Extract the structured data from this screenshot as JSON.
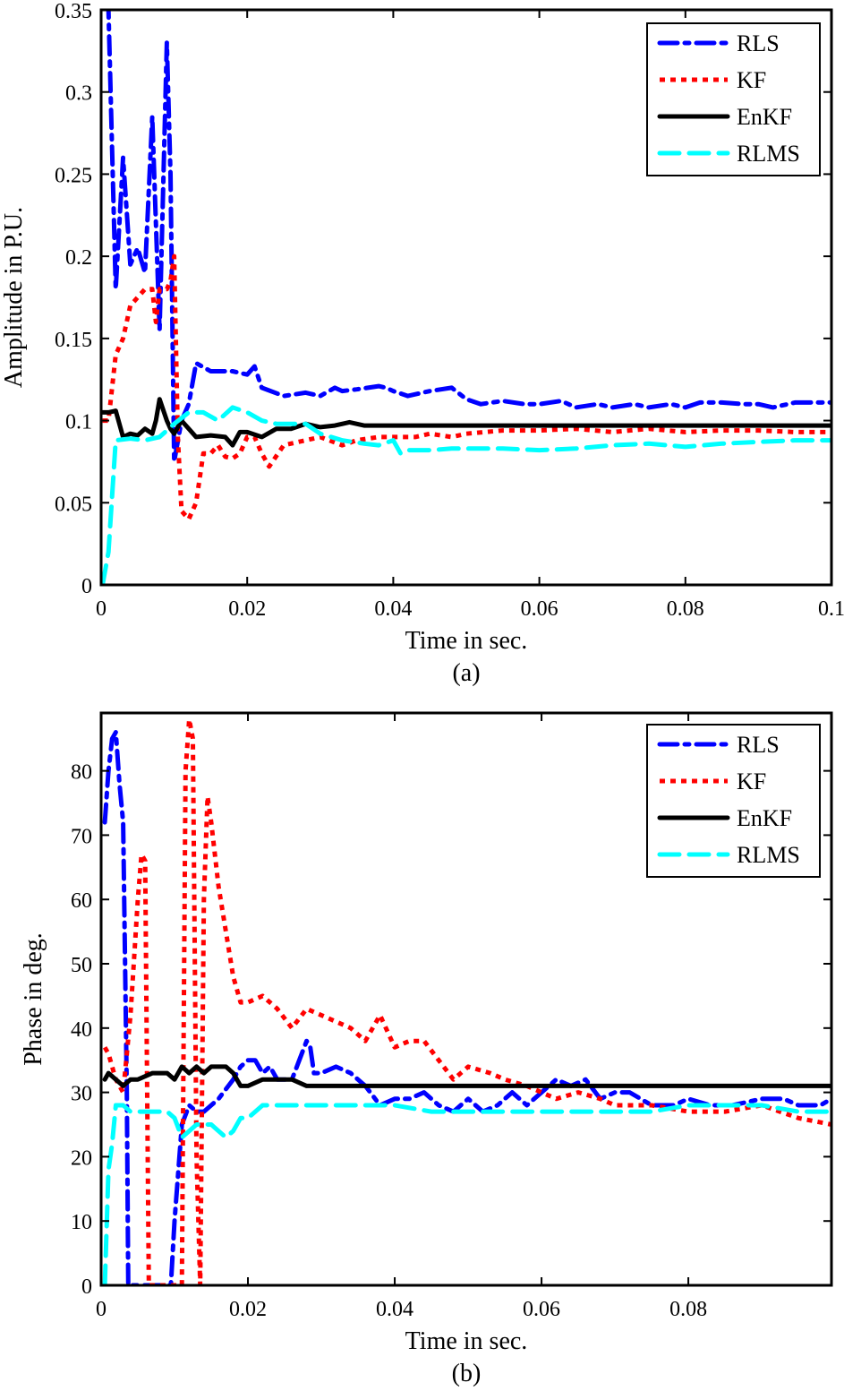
{
  "chart_data": [
    {
      "type": "line",
      "caption": "(a)",
      "xlabel": "Time in sec.",
      "ylabel": "Amplitude in P.U.",
      "xlim": [
        0,
        0.1
      ],
      "ylim": [
        0,
        0.35
      ],
      "xticks": [
        0,
        0.02,
        0.04,
        0.06,
        0.08,
        0.1
      ],
      "xtick_labels": [
        "0",
        "0.02",
        "0.04",
        "0.06",
        "0.08",
        "0.1"
      ],
      "yticks": [
        0,
        0.05,
        0.1,
        0.15,
        0.2,
        0.25,
        0.3,
        0.35
      ],
      "ytick_labels": [
        "0",
        "0.05",
        "0.1",
        "0.15",
        "0.2",
        "0.25",
        "0.3",
        "0.35"
      ],
      "grid": false,
      "legend_position": "top-right",
      "series": [
        {
          "name": "RLS",
          "color": "#0000ff",
          "dash": "dashdot",
          "x": [
            0.0002,
            0.001,
            0.002,
            0.003,
            0.004,
            0.005,
            0.006,
            0.007,
            0.008,
            0.009,
            0.0095,
            0.01,
            0.011,
            0.012,
            0.013,
            0.015,
            0.018,
            0.02,
            0.021,
            0.022,
            0.025,
            0.028,
            0.03,
            0.032,
            0.033,
            0.035,
            0.038,
            0.039,
            0.04,
            0.042,
            0.045,
            0.048,
            0.05,
            0.052,
            0.055,
            0.058,
            0.06,
            0.063,
            0.065,
            0.068,
            0.07,
            0.073,
            0.075,
            0.078,
            0.08,
            0.082,
            0.085,
            0.088,
            0.09,
            0.092,
            0.095,
            0.098,
            0.1
          ],
          "y": [
            0.355,
            0.35,
            0.18,
            0.26,
            0.195,
            0.205,
            0.19,
            0.285,
            0.155,
            0.33,
            0.25,
            0.075,
            0.1,
            0.11,
            0.135,
            0.13,
            0.13,
            0.128,
            0.133,
            0.12,
            0.115,
            0.117,
            0.115,
            0.12,
            0.118,
            0.119,
            0.121,
            0.12,
            0.118,
            0.115,
            0.118,
            0.12,
            0.113,
            0.11,
            0.112,
            0.11,
            0.11,
            0.112,
            0.108,
            0.11,
            0.108,
            0.11,
            0.108,
            0.11,
            0.108,
            0.111,
            0.111,
            0.11,
            0.11,
            0.108,
            0.111,
            0.111,
            0.111
          ]
        },
        {
          "name": "KF",
          "color": "#ff0000",
          "dash": "dotted",
          "x": [
            0.0002,
            0.001,
            0.002,
            0.003,
            0.004,
            0.005,
            0.006,
            0.007,
            0.0075,
            0.008,
            0.009,
            0.0095,
            0.01,
            0.0105,
            0.011,
            0.012,
            0.013,
            0.014,
            0.015,
            0.016,
            0.017,
            0.018,
            0.019,
            0.02,
            0.021,
            0.022,
            0.023,
            0.025,
            0.028,
            0.03,
            0.033,
            0.035,
            0.038,
            0.04,
            0.043,
            0.045,
            0.048,
            0.05,
            0.055,
            0.06,
            0.065,
            0.07,
            0.075,
            0.08,
            0.085,
            0.09,
            0.095,
            0.1
          ],
          "y": [
            0.1,
            0.1,
            0.14,
            0.15,
            0.17,
            0.175,
            0.18,
            0.18,
            0.16,
            0.18,
            0.18,
            0.185,
            0.2,
            0.09,
            0.045,
            0.04,
            0.05,
            0.08,
            0.08,
            0.085,
            0.078,
            0.077,
            0.08,
            0.09,
            0.09,
            0.08,
            0.072,
            0.085,
            0.088,
            0.09,
            0.085,
            0.088,
            0.09,
            0.09,
            0.09,
            0.092,
            0.09,
            0.092,
            0.094,
            0.094,
            0.095,
            0.093,
            0.095,
            0.093,
            0.094,
            0.094,
            0.093,
            0.093
          ]
        },
        {
          "name": "EnKF",
          "color": "#000000",
          "dash": "solid",
          "x": [
            0.0002,
            0.001,
            0.002,
            0.003,
            0.004,
            0.005,
            0.006,
            0.007,
            0.0075,
            0.008,
            0.009,
            0.0095,
            0.01,
            0.011,
            0.012,
            0.013,
            0.015,
            0.017,
            0.018,
            0.019,
            0.02,
            0.022,
            0.024,
            0.026,
            0.028,
            0.03,
            0.032,
            0.034,
            0.036,
            0.038,
            0.04,
            0.05,
            0.06,
            0.07,
            0.08,
            0.09,
            0.1
          ],
          "y": [
            0.105,
            0.105,
            0.106,
            0.09,
            0.092,
            0.091,
            0.095,
            0.092,
            0.1,
            0.113,
            0.1,
            0.095,
            0.092,
            0.1,
            0.095,
            0.09,
            0.091,
            0.09,
            0.085,
            0.093,
            0.093,
            0.09,
            0.095,
            0.095,
            0.098,
            0.096,
            0.097,
            0.099,
            0.097,
            0.097,
            0.097,
            0.097,
            0.097,
            0.097,
            0.097,
            0.097,
            0.097
          ]
        },
        {
          "name": "RLMS",
          "color": "#00ffff",
          "dash": "dashed",
          "x": [
            0.0002,
            0.001,
            0.002,
            0.004,
            0.006,
            0.008,
            0.01,
            0.012,
            0.014,
            0.016,
            0.018,
            0.02,
            0.022,
            0.024,
            0.026,
            0.028,
            0.03,
            0.033,
            0.036,
            0.038,
            0.04,
            0.041,
            0.042,
            0.045,
            0.048,
            0.05,
            0.055,
            0.06,
            0.065,
            0.07,
            0.075,
            0.08,
            0.085,
            0.09,
            0.095,
            0.1
          ],
          "y": [
            0,
            0.02,
            0.088,
            0.089,
            0.088,
            0.09,
            0.098,
            0.105,
            0.105,
            0.1,
            0.108,
            0.105,
            0.1,
            0.098,
            0.098,
            0.098,
            0.092,
            0.088,
            0.086,
            0.085,
            0.088,
            0.08,
            0.082,
            0.082,
            0.083,
            0.083,
            0.083,
            0.082,
            0.083,
            0.085,
            0.086,
            0.084,
            0.086,
            0.087,
            0.088,
            0.088
          ]
        }
      ]
    },
    {
      "type": "line",
      "caption": "(b)",
      "xlabel": "Time in sec.",
      "ylabel": "Phase in deg.",
      "xlim": [
        0,
        0.0995
      ],
      "ylim": [
        0,
        89
      ],
      "xticks": [
        0,
        0.02,
        0.04,
        0.06,
        0.08
      ],
      "xtick_labels": [
        "0",
        "0.02",
        "0.04",
        "0.06",
        "0.08"
      ],
      "yticks": [
        0,
        10,
        20,
        30,
        40,
        50,
        60,
        70,
        80
      ],
      "ytick_labels": [
        "0",
        "10",
        "20",
        "30",
        "40",
        "50",
        "60",
        "70",
        "80"
      ],
      "grid": false,
      "legend_position": "top-right",
      "series": [
        {
          "name": "RLS",
          "color": "#0000ff",
          "dash": "dashdot",
          "x": [
            0.0005,
            0.001,
            0.0015,
            0.002,
            0.0025,
            0.003,
            0.0035,
            0.0037,
            0.0095,
            0.01,
            0.011,
            0.012,
            0.013,
            0.014,
            0.016,
            0.018,
            0.019,
            0.02,
            0.021,
            0.022,
            0.023,
            0.024,
            0.026,
            0.027,
            0.028,
            0.0285,
            0.029,
            0.03,
            0.032,
            0.034,
            0.036,
            0.038,
            0.04,
            0.042,
            0.044,
            0.046,
            0.048,
            0.05,
            0.052,
            0.054,
            0.056,
            0.058,
            0.06,
            0.062,
            0.064,
            0.066,
            0.068,
            0.07,
            0.072,
            0.075,
            0.078,
            0.08,
            0.083,
            0.086,
            0.09,
            0.093,
            0.095,
            0.098,
            0.0995
          ],
          "y": [
            72,
            80,
            85,
            86,
            78,
            72,
            30,
            0,
            0,
            10,
            25,
            28,
            27,
            27,
            29,
            32,
            34,
            35,
            35,
            33,
            34,
            32,
            32,
            35,
            38,
            37,
            33,
            33,
            34,
            33,
            31,
            28,
            29,
            29,
            30,
            28,
            27,
            29,
            27,
            28,
            30,
            28,
            30,
            32,
            31,
            32,
            29,
            30,
            30,
            28,
            28,
            29,
            28,
            28,
            29,
            29,
            28,
            28,
            29
          ]
        },
        {
          "name": "KF",
          "color": "#ff0000",
          "dash": "dotted",
          "x": [
            0.0005,
            0.001,
            0.002,
            0.003,
            0.004,
            0.005,
            0.0055,
            0.006,
            0.0065,
            0.007,
            0.009,
            0.01,
            0.011,
            0.0115,
            0.012,
            0.0125,
            0.013,
            0.0135,
            0.014,
            0.0145,
            0.015,
            0.016,
            0.017,
            0.018,
            0.019,
            0.02,
            0.022,
            0.024,
            0.026,
            0.028,
            0.03,
            0.034,
            0.036,
            0.038,
            0.04,
            0.042,
            0.044,
            0.046,
            0.048,
            0.05,
            0.053,
            0.055,
            0.058,
            0.06,
            0.062,
            0.065,
            0.068,
            0.07,
            0.075,
            0.08,
            0.085,
            0.09,
            0.095,
            0.0995
          ],
          "y": [
            37,
            36,
            32,
            30,
            42,
            60,
            67,
            66,
            0,
            0,
            0,
            0,
            0,
            80,
            88,
            85,
            20,
            0,
            60,
            76,
            72,
            62,
            55,
            48,
            44,
            44,
            45,
            43,
            40,
            43,
            42,
            40,
            38,
            42,
            37,
            38,
            38,
            35,
            32,
            34,
            33,
            32,
            31,
            30,
            29,
            30,
            29,
            28,
            28,
            27,
            27,
            28,
            26,
            25
          ]
        },
        {
          "name": "EnKF",
          "color": "#000000",
          "dash": "solid",
          "x": [
            0.0005,
            0.001,
            0.002,
            0.003,
            0.004,
            0.005,
            0.007,
            0.008,
            0.009,
            0.01,
            0.011,
            0.012,
            0.013,
            0.014,
            0.015,
            0.017,
            0.018,
            0.019,
            0.02,
            0.022,
            0.024,
            0.026,
            0.028,
            0.03,
            0.032,
            0.035,
            0.04,
            0.05,
            0.06,
            0.07,
            0.08,
            0.09,
            0.0995
          ],
          "y": [
            32,
            33,
            32,
            31,
            32,
            32,
            33,
            33,
            33,
            32,
            34,
            33,
            34,
            33,
            34,
            34,
            33,
            31,
            31,
            32,
            32,
            32,
            31,
            31,
            31,
            31,
            31,
            31,
            31,
            31,
            31,
            31,
            31
          ]
        },
        {
          "name": "RLMS",
          "color": "#00ffff",
          "dash": "dashed",
          "x": [
            0.0005,
            0.001,
            0.0015,
            0.002,
            0.003,
            0.004,
            0.005,
            0.006,
            0.007,
            0.008,
            0.009,
            0.01,
            0.011,
            0.012,
            0.013,
            0.014,
            0.015,
            0.016,
            0.017,
            0.018,
            0.019,
            0.02,
            0.022,
            0.025,
            0.028,
            0.03,
            0.035,
            0.04,
            0.045,
            0.05,
            0.055,
            0.06,
            0.065,
            0.07,
            0.075,
            0.08,
            0.085,
            0.09,
            0.095,
            0.0995
          ],
          "y": [
            0,
            18,
            22,
            28,
            28,
            27,
            27,
            27,
            27,
            27,
            27,
            26,
            23,
            24,
            25,
            25,
            25,
            24,
            23,
            24,
            26,
            26,
            28,
            28,
            28,
            28,
            28,
            28,
            27,
            27,
            27,
            27,
            27,
            27,
            27,
            28,
            28,
            28,
            27,
            27
          ]
        }
      ]
    }
  ]
}
